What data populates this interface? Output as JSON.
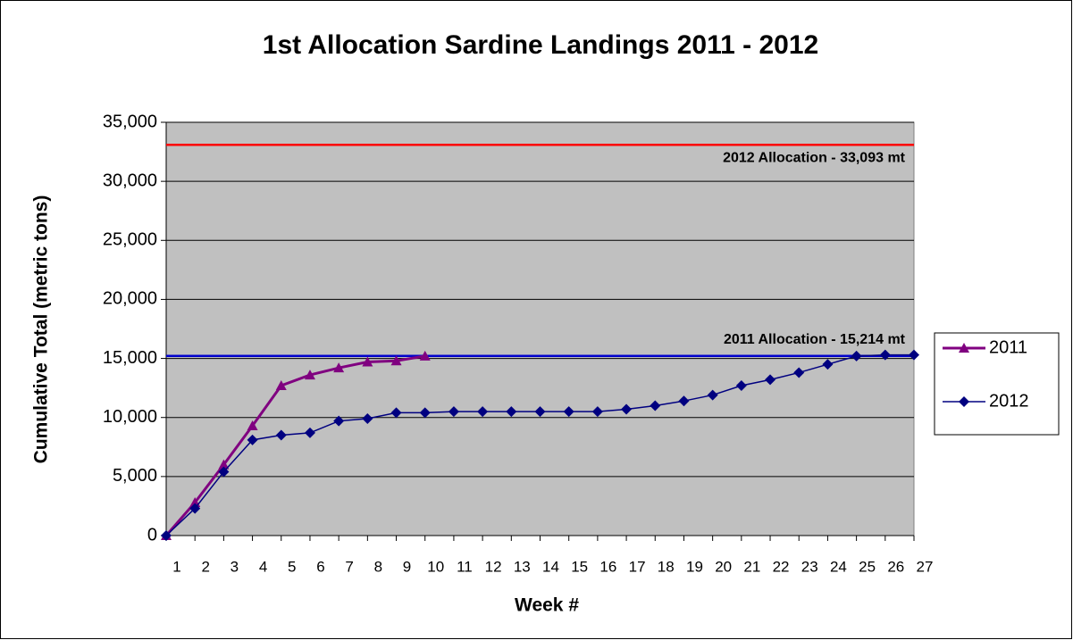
{
  "chart_data": {
    "type": "line",
    "title": "1st Allocation Sardine Landings 2011 - 2012",
    "x_label": "Week #",
    "y_label": "Cumulative Total (metric tons)",
    "categories": [
      "1",
      "2",
      "3",
      "4",
      "5",
      "6",
      "7",
      "8",
      "9",
      "10",
      "11",
      "12",
      "13",
      "14",
      "15",
      "16",
      "17",
      "18",
      "19",
      "20",
      "21",
      "22",
      "23",
      "24",
      "25",
      "26",
      "27"
    ],
    "series": [
      {
        "name": "2011",
        "color": "#800080",
        "marker": "triangle",
        "values": [
          0,
          2800,
          6000,
          9300,
          12700,
          13600,
          14200,
          14700,
          14800,
          15200,
          null,
          null,
          null,
          null,
          null,
          null,
          null,
          null,
          null,
          null,
          null,
          null,
          null,
          null,
          null,
          null,
          null
        ]
      },
      {
        "name": "2012",
        "color": "#000080",
        "marker": "diamond",
        "values": [
          0,
          2300,
          5400,
          8100,
          8500,
          8700,
          9700,
          9900,
          10400,
          10400,
          10500,
          10500,
          10500,
          10500,
          10500,
          10500,
          10700,
          11000,
          11400,
          11900,
          12700,
          13200,
          13800,
          14500,
          15200,
          15300,
          15300
        ]
      }
    ],
    "reference_lines": [
      {
        "value": 33093,
        "label": "2012 Allocation - 33,093 mt",
        "color": "#ff0000"
      },
      {
        "value": 15214,
        "label": "2011 Allocation - 15,214 mt",
        "color": "#0000cc"
      }
    ],
    "ylim": [
      0,
      35000
    ],
    "yticks": [
      0,
      {
        "value": 5000,
        "label": "5,000"
      },
      {
        "value": 10000,
        "label": "10,000"
      },
      {
        "value": 15000,
        "label": "15,000"
      },
      {
        "value": 20000,
        "label": "20,000"
      },
      {
        "value": 25000,
        "label": "25,000"
      },
      {
        "value": 30000,
        "label": "30,000"
      },
      {
        "value": 35000,
        "label": "35,000"
      }
    ],
    "grid": true,
    "legend": "right",
    "plot_background": "#c0c0c0"
  }
}
